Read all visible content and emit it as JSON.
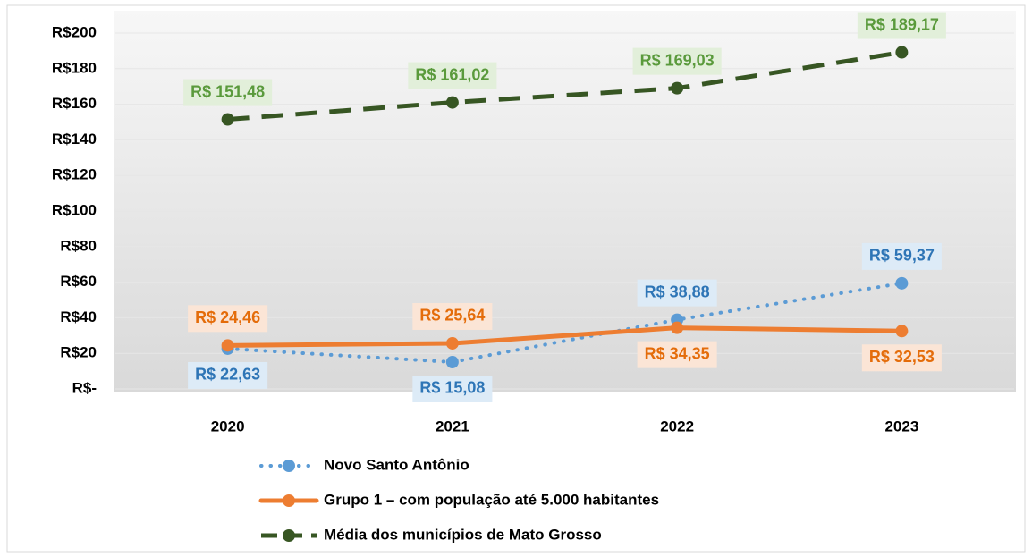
{
  "chart_data": {
    "type": "line",
    "categories": [
      "2020",
      "2021",
      "2022",
      "2023"
    ],
    "ylim": [
      0,
      200
    ],
    "yticks": [
      {
        "value": 0,
        "label": "R$-"
      },
      {
        "value": 20,
        "label": "R$20"
      },
      {
        "value": 40,
        "label": "R$40"
      },
      {
        "value": 60,
        "label": "R$60"
      },
      {
        "value": 80,
        "label": "R$80"
      },
      {
        "value": 100,
        "label": "R$100"
      },
      {
        "value": 120,
        "label": "R$120"
      },
      {
        "value": 140,
        "label": "R$140"
      },
      {
        "value": 160,
        "label": "R$160"
      },
      {
        "value": 180,
        "label": "R$180"
      },
      {
        "value": 200,
        "label": "R$200"
      }
    ],
    "grid": true,
    "legend": "bottom",
    "series": [
      {
        "name": "Novo Santo Antônio",
        "color": "#5b9bd5",
        "line_style": "dotted",
        "values": [
          22.63,
          15.08,
          38.88,
          59.37
        ],
        "value_labels": [
          "R$ 22,63",
          "R$ 15,08",
          "R$ 38,88",
          "R$ 59,37"
        ]
      },
      {
        "name": "Grupo 1 – com população até 5.000 habitantes",
        "color": "#ed7d31",
        "line_style": "solid",
        "values": [
          24.46,
          25.64,
          34.35,
          32.53
        ],
        "value_labels": [
          "R$ 24,46",
          "R$ 25,64",
          "R$ 34,35",
          "R$ 32,53"
        ]
      },
      {
        "name": "Média dos municípios de Mato Grosso",
        "color": "#375623",
        "line_style": "dashed",
        "values": [
          151.48,
          161.02,
          169.03,
          189.17
        ],
        "value_labels": [
          "R$ 151,48",
          "R$ 161,02",
          "R$ 169,03",
          "R$ 189,17"
        ]
      }
    ]
  }
}
